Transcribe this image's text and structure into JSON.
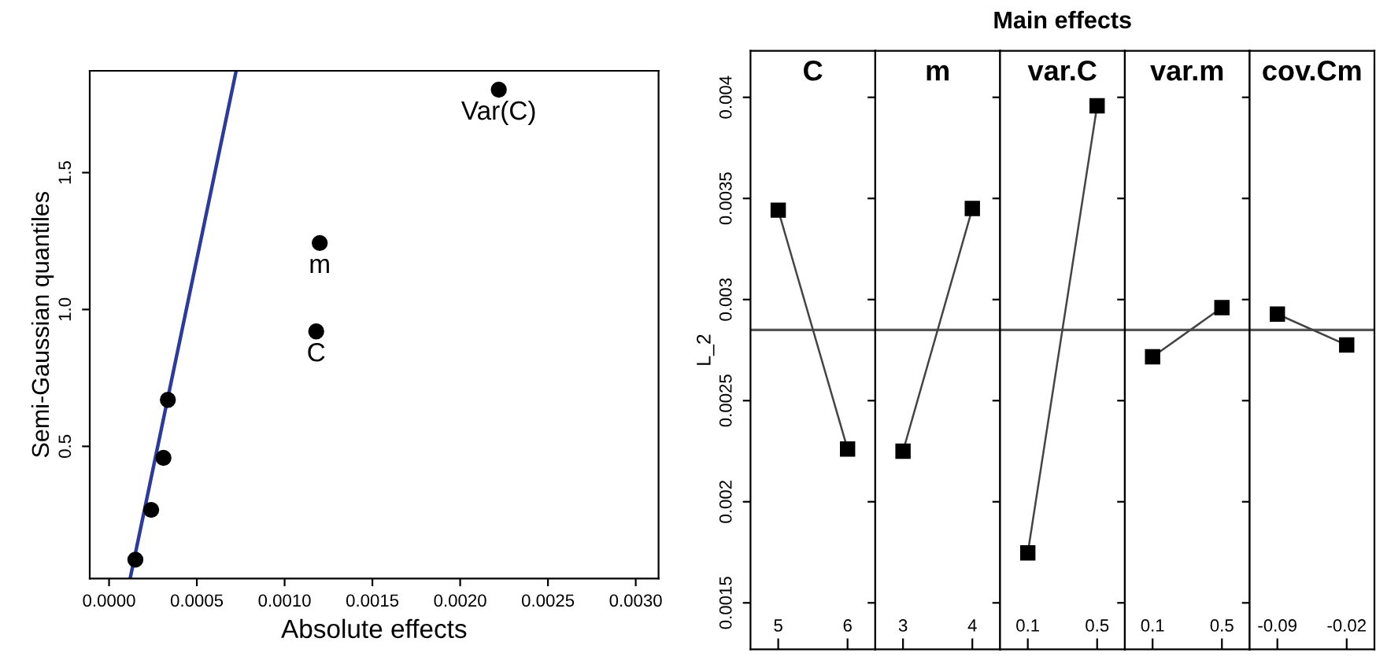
{
  "chart_data": [
    {
      "type": "scatter",
      "xlabel": "Absolute effects",
      "ylabel": "Semi-Gaussian quantiles",
      "xlim": [
        -0.00011,
        0.00313
      ],
      "ylim": [
        0.017,
        1.872
      ],
      "xticks": [
        {
          "value": 0,
          "label": "0.0000"
        },
        {
          "value": 0.0005,
          "label": "0.0005"
        },
        {
          "value": 0.001,
          "label": "0.0010"
        },
        {
          "value": 0.0015,
          "label": "0.0015"
        },
        {
          "value": 0.002,
          "label": "0.0020"
        },
        {
          "value": 0.0025,
          "label": "0.0025"
        },
        {
          "value": 0.003,
          "label": "0.0030"
        }
      ],
      "yticks": [
        0.5,
        {
          "value": 1.0,
          "label": "1.0"
        },
        1.5
      ],
      "grid": false,
      "marker": "circle",
      "series": [
        {
          "type": "scatter",
          "color": "#000000",
          "x": [
            0.00015,
            0.00024,
            0.00031,
            0.000335,
            0.00118,
            0.0012,
            0.00222
          ],
          "values": [
            0.086,
            0.268,
            0.458,
            0.67,
            0.92,
            1.243,
            1.803
          ]
        },
        {
          "type": "line",
          "color": "#2b3a9c",
          "x": [
            0.00012,
            0.000724
          ],
          "values": [
            0.017,
            1.872
          ],
          "marker": "none"
        }
      ],
      "annotations": [
        {
          "text": "C",
          "x": 0.00118,
          "y": 0.92
        },
        {
          "text": "m",
          "x": 0.0012,
          "y": 1.243
        },
        {
          "text": "Var(C)",
          "x": 0.00222,
          "y": 1.803
        }
      ]
    },
    {
      "type": "line",
      "title": "C",
      "ylabel": "L_2",
      "annotations": [
        "Main effects"
      ],
      "categories": [
        "5",
        "6"
      ],
      "values": [
        0.003442,
        0.002261
      ],
      "color": "#000000",
      "marker": "square",
      "ylim": [
        0.00127,
        0.00423
      ],
      "yticks": [
        0.0015,
        0.002,
        0.0025,
        0.003,
        0.0035,
        0.004
      ],
      "ref_lines": [
        {
          "axis": "y",
          "value": 0.00285
        }
      ],
      "grid": false
    },
    {
      "type": "line",
      "title": "m",
      "categories": [
        "3",
        "4"
      ],
      "values": [
        0.00225,
        0.00345
      ],
      "color": "#000000",
      "marker": "square",
      "ylim": [
        0.00127,
        0.00423
      ],
      "yticks": [
        0.0015,
        0.002,
        0.0025,
        0.003,
        0.0035,
        0.004
      ],
      "tick_labels": "x",
      "ref_lines": [
        {
          "axis": "y",
          "value": 0.00285
        }
      ],
      "grid": false
    },
    {
      "type": "line",
      "title": "var.C",
      "categories": [
        "0.1",
        "0.5"
      ],
      "values": [
        0.001747,
        0.003958
      ],
      "color": "#000000",
      "marker": "square",
      "ylim": [
        0.00127,
        0.00423
      ],
      "yticks": [
        0.0015,
        0.002,
        0.0025,
        0.003,
        0.0035,
        0.004
      ],
      "tick_labels": "x",
      "ref_lines": [
        {
          "axis": "y",
          "value": 0.00285
        }
      ],
      "grid": false
    },
    {
      "type": "line",
      "title": "var.m",
      "categories": [
        "0.1",
        "0.5"
      ],
      "values": [
        0.002717,
        0.00296
      ],
      "color": "#000000",
      "marker": "square",
      "ylim": [
        0.00127,
        0.00423
      ],
      "yticks": [
        0.0015,
        0.002,
        0.0025,
        0.003,
        0.0035,
        0.004
      ],
      "tick_labels": "x",
      "ref_lines": [
        {
          "axis": "y",
          "value": 0.00285
        }
      ],
      "grid": false
    },
    {
      "type": "line",
      "title": "cov.Cm",
      "categories": [
        "-0.09",
        "-0.02"
      ],
      "values": [
        0.002928,
        0.002775
      ],
      "color": "#000000",
      "marker": "square",
      "ylim": [
        0.00127,
        0.00423
      ],
      "yticks": [
        0.0015,
        0.002,
        0.0025,
        0.003,
        0.0035,
        0.004
      ],
      "tick_labels": "x",
      "ref_lines": [
        {
          "axis": "y",
          "value": 0.00285
        }
      ],
      "grid": false
    }
  ]
}
